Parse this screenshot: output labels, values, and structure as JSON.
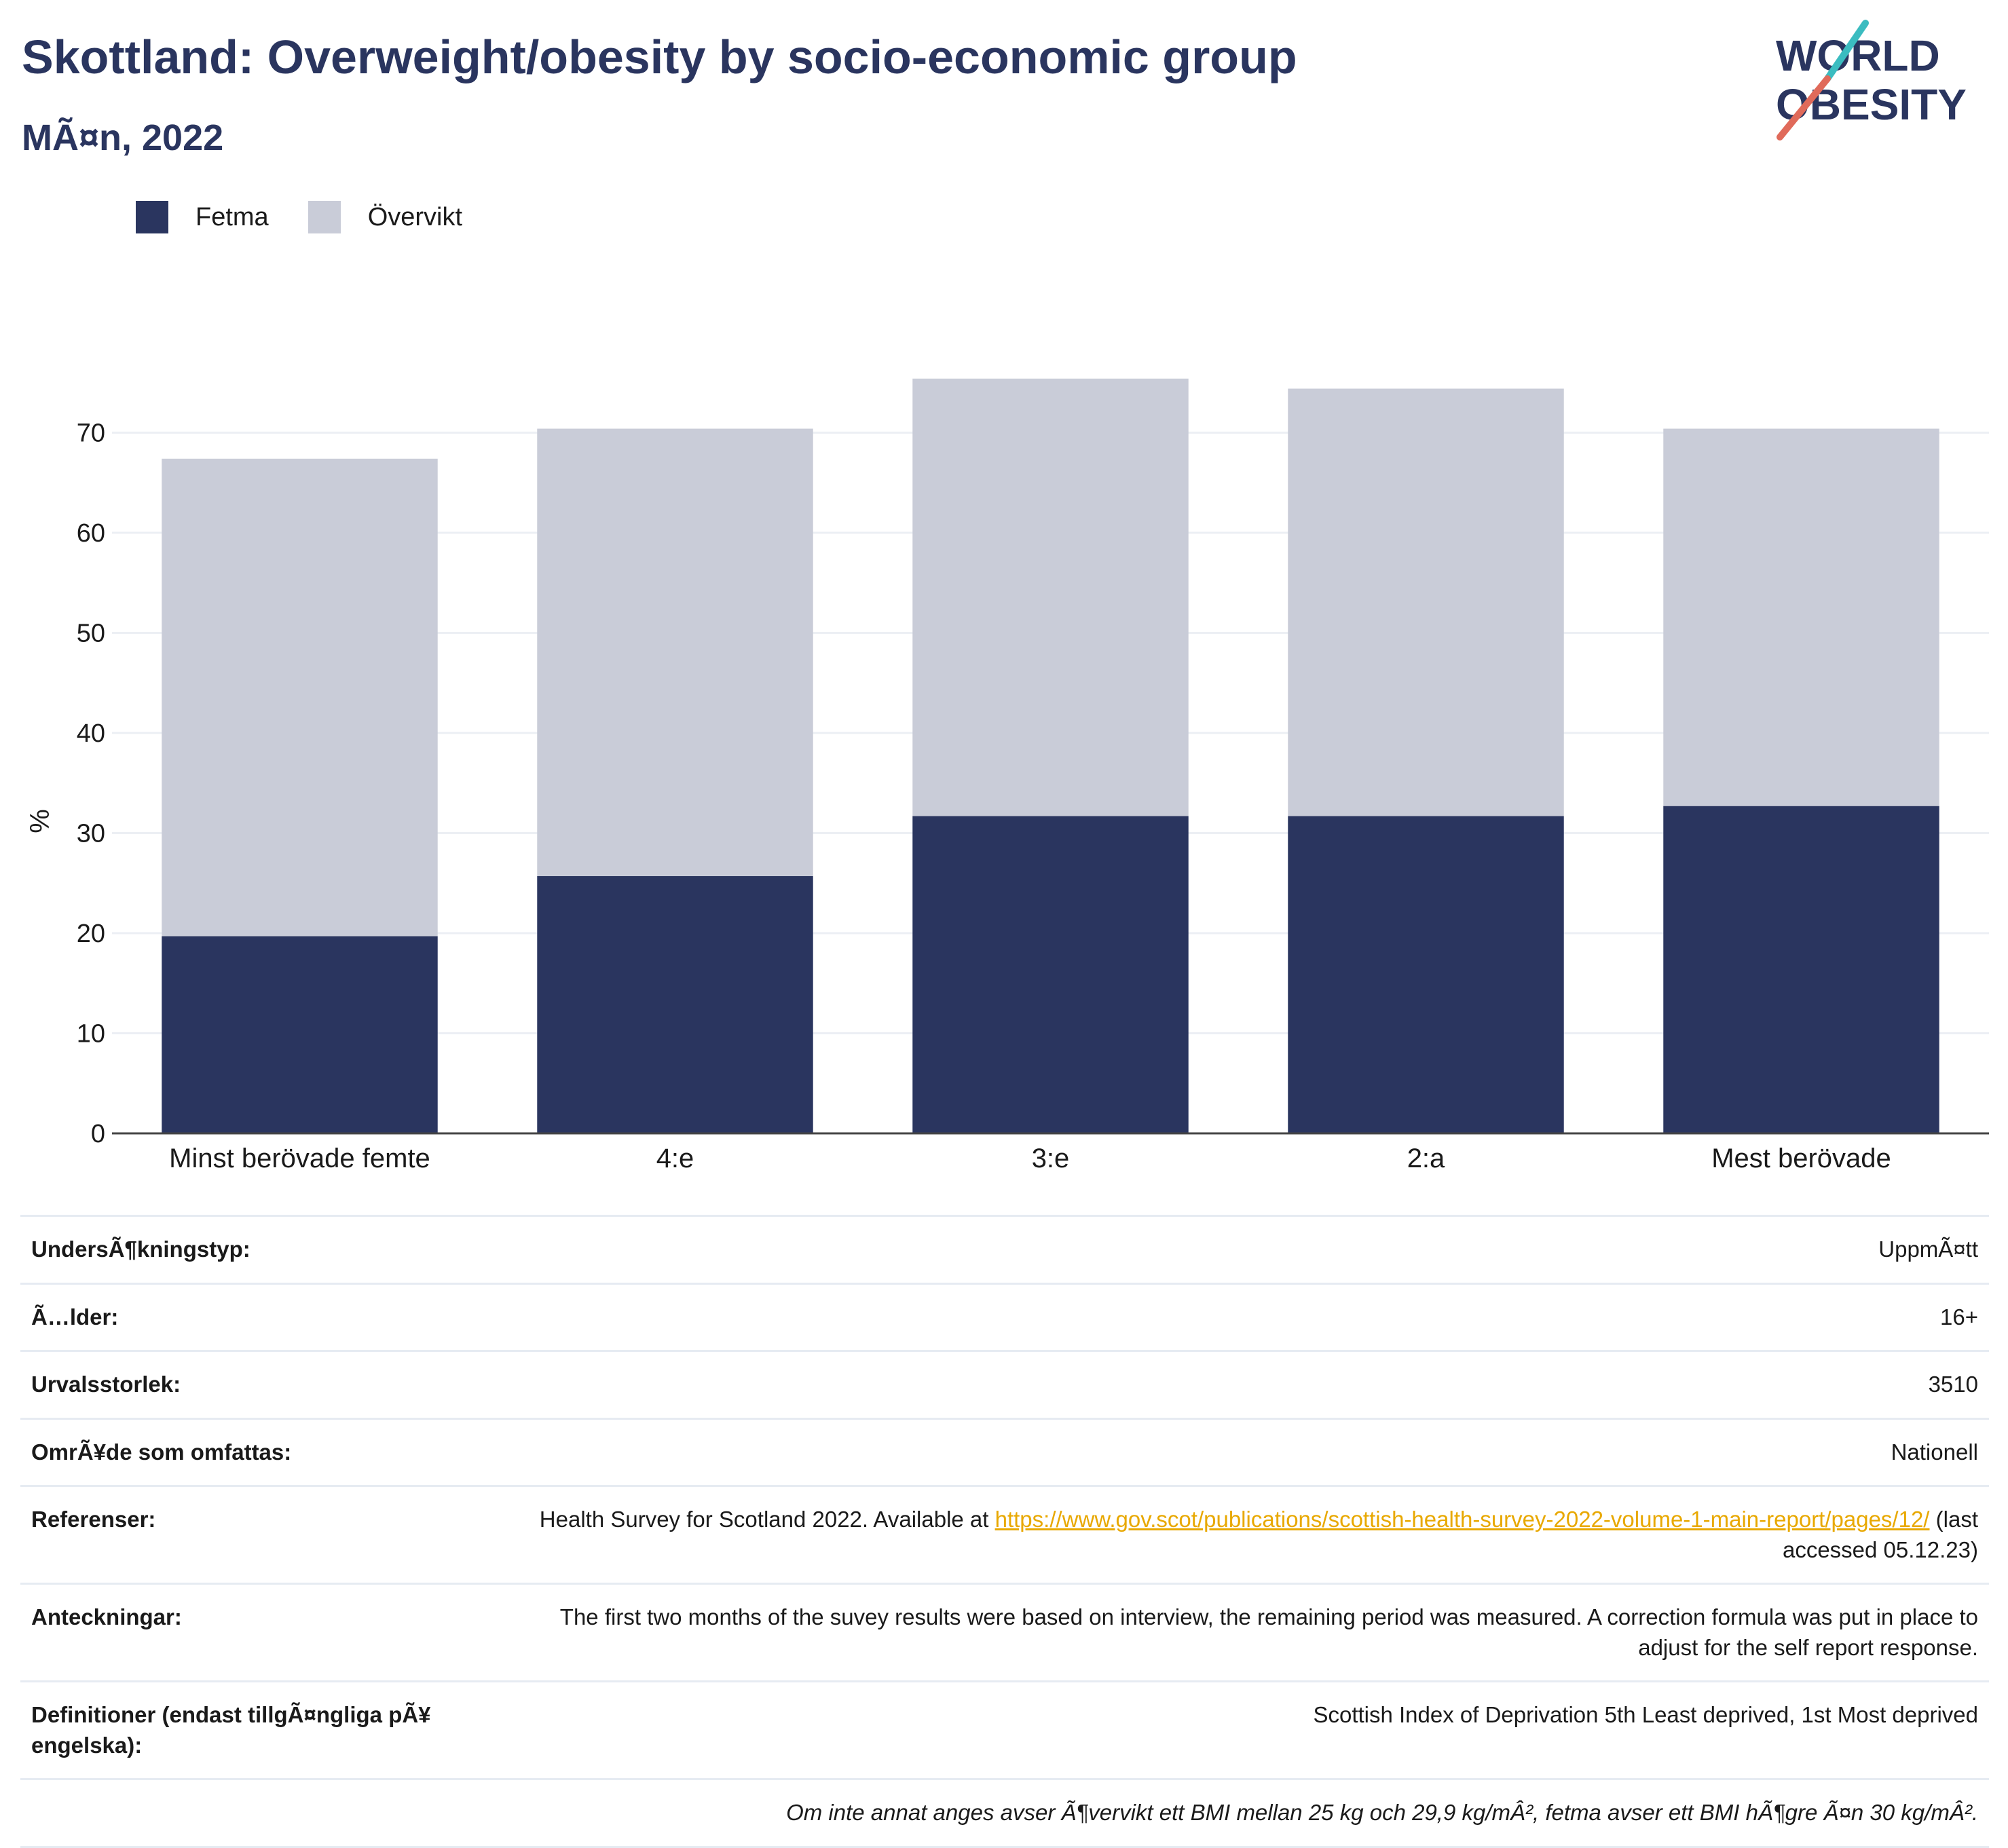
{
  "header": {
    "title": "Skottland: Overweight/obesity by socio-economic group",
    "subtitle": "MÃ¤n, 2022"
  },
  "logo": {
    "line1": "WORLD",
    "line2": "OBESITY"
  },
  "colors": {
    "fetma": "#2a355f",
    "overvikt": "#c9ccd8",
    "title": "#2a355f",
    "link": "#e8a800"
  },
  "legend": [
    {
      "label": "Fetma",
      "color": "#2a355f"
    },
    {
      "label": "Övervikt",
      "color": "#c9ccd8"
    }
  ],
  "chart_data": {
    "type": "bar",
    "stacked": true,
    "categories": [
      "Minst berövade femte",
      "4:e",
      "3:e",
      "2:a",
      "Mest berövade"
    ],
    "series": [
      {
        "name": "Fetma",
        "values": [
          19.7,
          25.7,
          31.7,
          31.7,
          32.7
        ]
      },
      {
        "name": "Övervikt",
        "values": [
          47.7,
          44.7,
          43.7,
          42.7,
          37.7
        ]
      }
    ],
    "ylabel": "%",
    "ylim": [
      0,
      80
    ],
    "yticks": [
      0,
      10,
      20,
      30,
      40,
      50,
      60,
      70
    ],
    "grid": true,
    "legend_position": "top-left"
  },
  "info": {
    "survey_type": {
      "label": "UndersÃ¶kningstyp:",
      "value": "UppmÃ¤tt"
    },
    "age": {
      "label": "Ã…lder:",
      "value": "16+"
    },
    "sample_size": {
      "label": "Urvalsstorlek:",
      "value": "3510"
    },
    "area": {
      "label": "OmrÃ¥de som omfattas:",
      "value": "Nationell"
    },
    "references": {
      "label": "Referenser:",
      "prefix": "Health Survey for Scotland 2022. Available at ",
      "url": "https://www.gov.scot/publications/scottish-health-survey-2022-volume-1-main-report/pages/12/",
      "suffix": " (last accessed 05.12.23)"
    },
    "notes": {
      "label": "Anteckningar:",
      "value": "The first two months of the suvey results were based on interview, the remaining period was measured. A correction formula was put in place to adjust for the self report response."
    },
    "definitions": {
      "label": "Definitioner (endast tillgÃ¤ngliga pÃ¥ engelska):",
      "value": "Scottish Index of Deprivation 5th Least deprived, 1st Most deprived"
    },
    "footnote": "Om inte annat anges avser Ã¶vervikt ett BMI mellan 25 kg och 29,9 kg/mÂ², fetma avser ett BMI hÃ¶gre Ã¤n 30 kg/mÂ²."
  }
}
